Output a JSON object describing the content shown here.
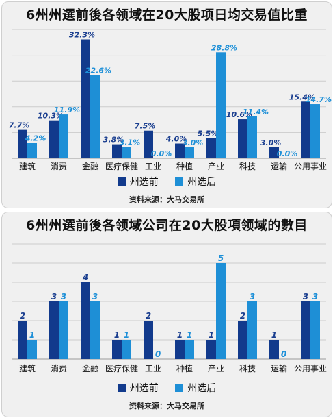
{
  "colors": {
    "before": "#123a8c",
    "after": "#1e8fd6",
    "label_before": "#1a3e8f",
    "label_after": "#1e90d8"
  },
  "legend": {
    "before": "州选前",
    "after": "州选后"
  },
  "source": "资料来源：大马交易所",
  "chart_data": [
    {
      "type": "bar",
      "title": "6州州選前後各领域在20大股项日均交易值比重",
      "categories": [
        "建筑",
        "消费",
        "金融",
        "医疗保健",
        "工业",
        "种植",
        "产业",
        "科技",
        "运输",
        "公用事业"
      ],
      "series": [
        {
          "name": "州选前",
          "values": [
            7.7,
            10.3,
            32.3,
            3.8,
            7.5,
            4.0,
            5.5,
            10.6,
            3.0,
            15.4
          ],
          "labels": [
            "7.7%",
            "10.3%",
            "32.3%",
            "3.8%",
            "7.5%",
            "4.0%",
            "5.5%",
            "10.6%",
            "3.0%",
            "15.4%"
          ]
        },
        {
          "name": "州选后",
          "values": [
            4.2,
            11.9,
            22.6,
            3.1,
            0.0,
            3.0,
            28.8,
            11.4,
            0.0,
            14.7
          ],
          "labels": [
            "4.2%",
            "11.9%",
            "22.6%",
            "3.1%",
            "0.0%",
            "3.0%",
            "28.8%",
            "11.4%",
            "0.0%",
            "14.7%"
          ]
        }
      ],
      "ylim": [
        0,
        35
      ],
      "grid": true,
      "legend_position": "bottom"
    },
    {
      "type": "bar",
      "title": "6州州選前後各领域公司在20大股項领域的數目",
      "categories": [
        "建筑",
        "消费",
        "金融",
        "医疗保健",
        "工业",
        "种植",
        "产业",
        "科技",
        "运输",
        "公用事业"
      ],
      "series": [
        {
          "name": "州选前",
          "values": [
            2,
            3,
            4,
            1,
            2,
            1,
            1,
            2,
            1,
            3
          ],
          "labels": [
            "2",
            "3",
            "4",
            "1",
            "2",
            "1",
            "1",
            "2",
            "1",
            "3"
          ]
        },
        {
          "name": "州选后",
          "values": [
            1,
            3,
            3,
            1,
            0,
            1,
            5,
            3,
            0,
            3
          ],
          "labels": [
            "1",
            "3",
            "3",
            "1",
            "0",
            "1",
            "5",
            "3",
            "0",
            "3"
          ]
        }
      ],
      "ylim": [
        0,
        6
      ],
      "grid": true,
      "legend_position": "bottom"
    }
  ]
}
